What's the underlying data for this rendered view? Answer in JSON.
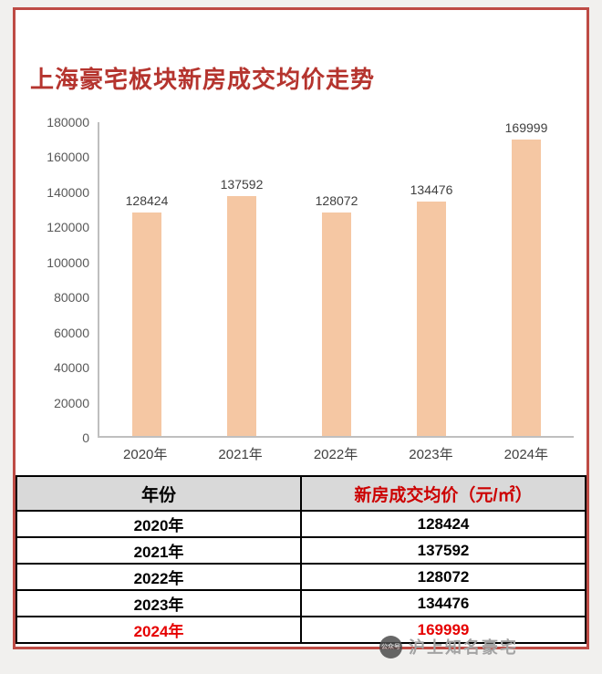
{
  "chart_data": {
    "type": "bar",
    "title": "上海豪宅板块新房成交均价走势",
    "categories": [
      "2020年",
      "2021年",
      "2022年",
      "2023年",
      "2024年"
    ],
    "values": [
      128424,
      137592,
      128072,
      134476,
      169999
    ],
    "xlabel": "",
    "ylabel": "",
    "ylim": [
      0,
      180000
    ],
    "yticks": [
      0,
      20000,
      40000,
      60000,
      80000,
      100000,
      120000,
      140000,
      160000,
      180000
    ],
    "grid": false,
    "legend": "none",
    "bar_color": "#f5c7a3"
  },
  "table": {
    "col_year_header": "年份",
    "col_price_header": "新房成交均价（元/㎡）",
    "rows": [
      {
        "year": "2020年",
        "price": "128424",
        "highlight": false
      },
      {
        "year": "2021年",
        "price": "137592",
        "highlight": false
      },
      {
        "year": "2022年",
        "price": "128072",
        "highlight": false
      },
      {
        "year": "2023年",
        "price": "134476",
        "highlight": false
      },
      {
        "year": "2024年",
        "price": "169999",
        "highlight": true
      }
    ]
  },
  "watermark": {
    "logo_text": "公众号",
    "text": "沪上知名豪宅"
  },
  "colors": {
    "frame_border": "#be4b45",
    "title_text": "#b5342e",
    "bar_fill": "#f5c7a3",
    "table_header_bg": "#d9d9d9",
    "table_header_price_text": "#cc0000",
    "highlight_row_text": "#e60000"
  }
}
